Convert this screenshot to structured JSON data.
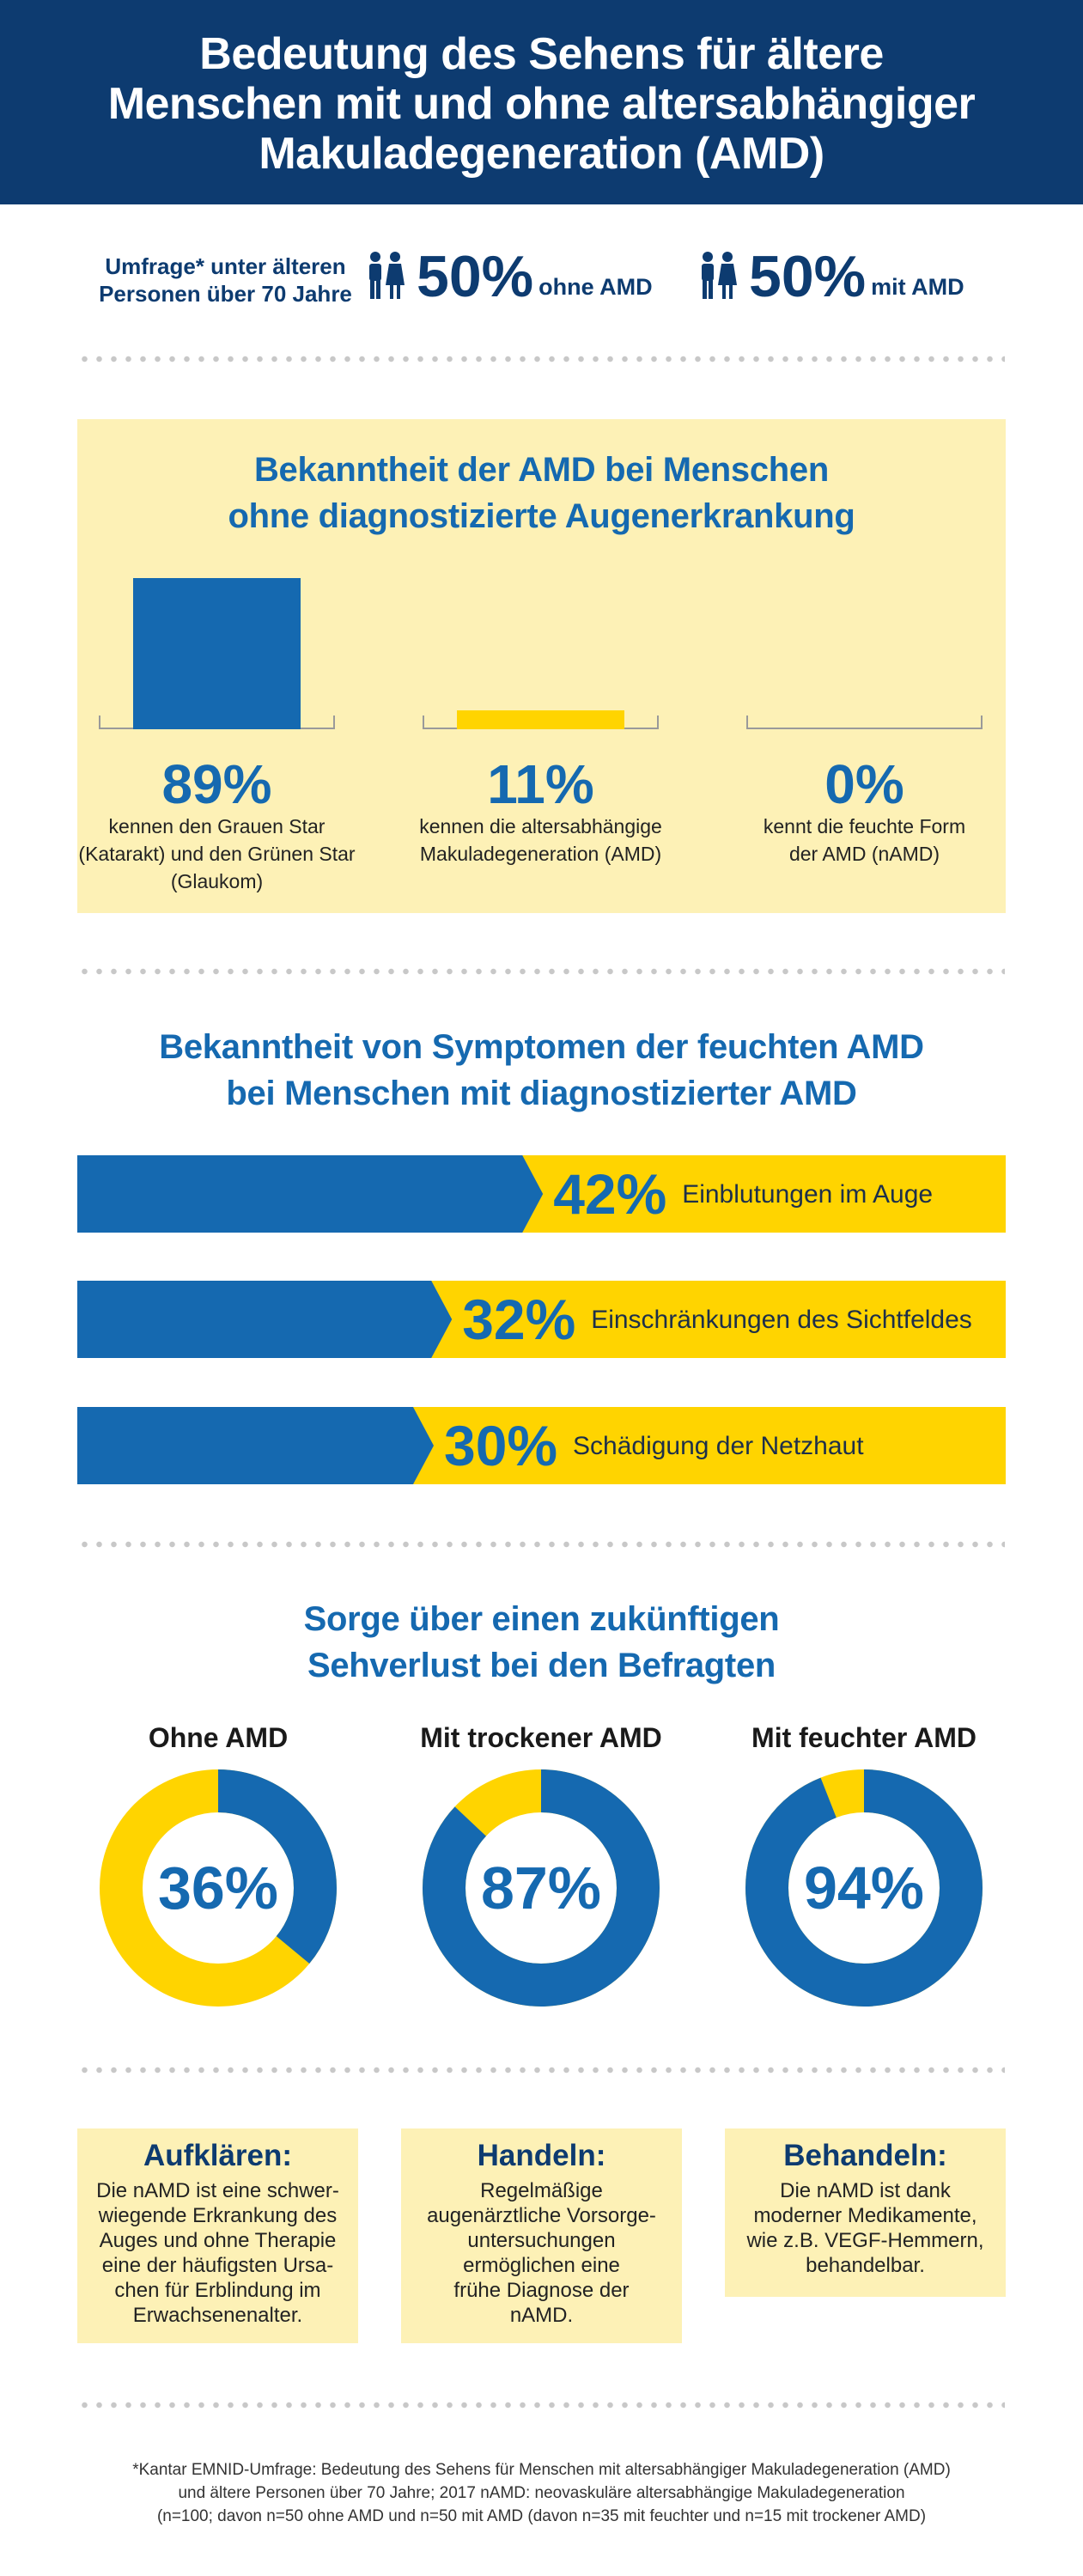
{
  "header": {
    "title_lines": [
      "Bedeutung des Sehens für ältere",
      "Menschen mit und ohne altersabhängiger",
      "Makuladegeneration (AMD)"
    ]
  },
  "survey": {
    "label_lines": [
      "Umfrage* unter älteren",
      "Personen über 70 Jahre"
    ],
    "group1": {
      "value": "50%",
      "label": "ohne AMD"
    },
    "group2": {
      "value": "50%",
      "label": "mit AMD"
    },
    "icon": "people-icon"
  },
  "section1": {
    "title_lines": [
      "Bekanntheit der AMD bei Menschen",
      "ohne diagnostizierte Augenerkrankung"
    ],
    "bars": [
      {
        "value": "89%",
        "desc_lines": [
          "kennen den Grauen Star",
          "(Katarakt) und den Grünen Star",
          "(Glaukom)"
        ]
      },
      {
        "value": "11%",
        "desc_lines": [
          "kennen die altersabhängige",
          "Makuladegeneration (AMD)"
        ]
      },
      {
        "value": "0%",
        "desc_lines": [
          "kennt die feuchte Form",
          "der AMD (nAMD)"
        ]
      }
    ]
  },
  "section2": {
    "title_lines": [
      "Bekanntheit von Symptomen der feuchten AMD",
      "bei Menschen mit diagnostizierter AMD"
    ],
    "bars": [
      {
        "value": "42%",
        "label": "Einblutungen im Auge"
      },
      {
        "value": "32%",
        "label": "Einschränkungen des Sichtfeldes"
      },
      {
        "value": "30%",
        "label": "Schädigung der Netzhaut"
      }
    ]
  },
  "section3": {
    "title_lines": [
      "Sorge über einen zukünftigen",
      "Sehverlust bei den Befragten"
    ],
    "donuts": [
      {
        "title": "Ohne AMD",
        "value": "36%"
      },
      {
        "title": "Mit trockener AMD",
        "value": "87%"
      },
      {
        "title": "Mit feuchter AMD",
        "value": "94%"
      }
    ]
  },
  "boxes": [
    {
      "title": "Aufklären:",
      "body_lines": [
        "Die nAMD ist eine schwer-",
        "wiegende Erkrankung des",
        "Auges und ohne Therapie",
        "eine der häufigsten Ursa-",
        "chen für Erblindung im",
        "Erwachsenenalter."
      ]
    },
    {
      "title": "Handeln:",
      "body_lines": [
        "Regelmäßige",
        "augenärztliche Vorsorge-",
        "untersuchungen",
        "ermöglichen eine",
        "frühe Diagnose der",
        "nAMD."
      ]
    },
    {
      "title": "Behandeln:",
      "body_lines": [
        "Die nAMD ist dank",
        "moderner Medikamente,",
        "wie z.B. VEGF-Hemmern,",
        "behandelbar."
      ]
    }
  ],
  "footnote_lines": [
    "*Kantar EMNID-Umfrage: Bedeutung des Sehens für Menschen mit altersabhängiger Makuladegeneration (AMD)",
    "und ältere Personen über 70 Jahre; 2017 nAMD: neovaskuläre altersabhängige Makuladegeneration",
    "(n=100; davon n=50 ohne AMD und n=50 mit AMD (davon n=35 mit feuchter und n=15 mit trockener AMD)"
  ],
  "colors": {
    "navy": "#0d3b70",
    "blue": "#1569b0",
    "yellow": "#ffd400",
    "cream": "#fdf1b6"
  },
  "chart_data": [
    {
      "type": "bar",
      "title": "Bekanntheit der AMD bei Menschen ohne diagnostizierte Augenerkrankung",
      "categories": [
        "kennen den Grauen Star (Katarakt) und den Grünen Star (Glaukom)",
        "kennen die altersabhängige Makuladegeneration (AMD)",
        "kennt die feuchte Form der AMD (nAMD)"
      ],
      "values": [
        89,
        11,
        0
      ],
      "ylim": [
        0,
        100
      ]
    },
    {
      "type": "bar",
      "title": "Bekanntheit von Symptomen der feuchten AMD bei Menschen mit diagnostizierter AMD",
      "categories": [
        "Einblutungen im Auge",
        "Einschränkungen des Sichtfeldes",
        "Schädigung der Netzhaut"
      ],
      "values": [
        42,
        32,
        30
      ],
      "orientation": "horizontal"
    },
    {
      "type": "pie",
      "title": "Sorge über einen zukünftigen Sehverlust bei den Befragten",
      "categories": [
        "Ohne AMD",
        "Mit trockener AMD",
        "Mit feuchter AMD"
      ],
      "values": [
        36,
        87,
        94
      ]
    }
  ]
}
